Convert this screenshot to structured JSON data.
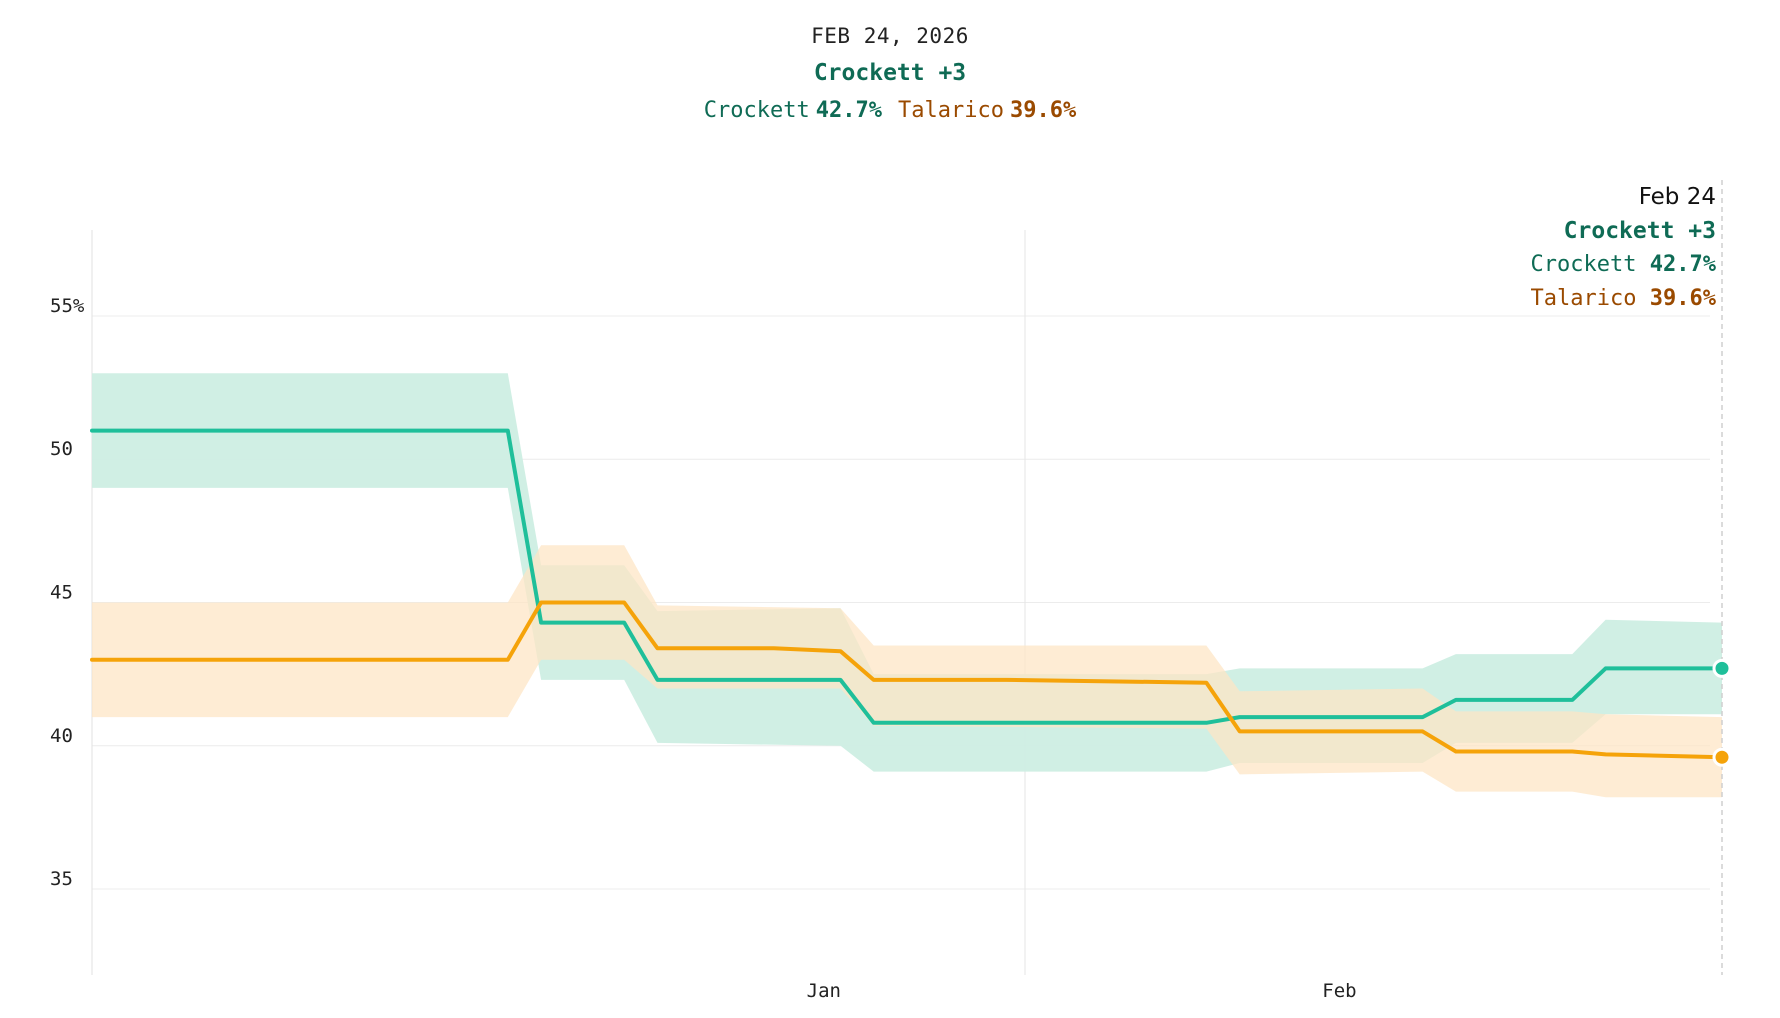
{
  "header": {
    "date": "FEB 24, 2026",
    "lead": "Crockett +3",
    "crockett_label": "Crockett",
    "crockett_value": "42.7%",
    "talarico_label": "Talarico",
    "talarico_value": "39.6%"
  },
  "hover": {
    "date": "Feb 24",
    "lead": "Crockett +3",
    "crockett_label": "Crockett",
    "crockett_value": "42.7%",
    "talarico_label": "Talarico",
    "talarico_value": "39.6%"
  },
  "colors": {
    "crockett": "#1fbf9a",
    "talarico": "#f5a30a",
    "crockett_band": "#cdeee3",
    "talarico_band": "#fde6c6",
    "overlap_band": "#ddd9b4"
  },
  "chart_data": {
    "type": "line",
    "x_labels": [
      "Jan",
      "Feb"
    ],
    "y_ticks": [
      "55%",
      "50",
      "45",
      "40",
      "35"
    ],
    "ylim": [
      32,
      58
    ],
    "series": [
      {
        "name": "Crockett",
        "points": [
          [
            "2025-11-18",
            51.0
          ],
          [
            "2025-12-13",
            51.0
          ],
          [
            "2025-12-15",
            44.3
          ],
          [
            "2025-12-20",
            44.3
          ],
          [
            "2025-12-22",
            42.3
          ],
          [
            "2025-12-29",
            42.3
          ],
          [
            "2026-01-02",
            42.3
          ],
          [
            "2026-01-04",
            40.8
          ],
          [
            "2026-01-12",
            40.8
          ],
          [
            "2026-01-24",
            40.8
          ],
          [
            "2026-01-26",
            41.0
          ],
          [
            "2026-02-06",
            41.0
          ],
          [
            "2026-02-08",
            41.6
          ],
          [
            "2026-02-15",
            41.6
          ],
          [
            "2026-02-17",
            42.7
          ],
          [
            "2026-02-24",
            42.7
          ]
        ],
        "band_upper": [
          [
            "2025-11-18",
            53.0
          ],
          [
            "2025-12-13",
            53.0
          ],
          [
            "2025-12-15",
            46.3
          ],
          [
            "2025-12-20",
            46.3
          ],
          [
            "2025-12-22",
            44.7
          ],
          [
            "2026-01-02",
            44.8
          ],
          [
            "2026-01-04",
            42.5
          ],
          [
            "2026-01-24",
            42.5
          ],
          [
            "2026-01-26",
            42.7
          ],
          [
            "2026-02-06",
            42.7
          ],
          [
            "2026-02-08",
            43.2
          ],
          [
            "2026-02-15",
            43.2
          ],
          [
            "2026-02-17",
            44.4
          ],
          [
            "2026-02-24",
            44.3
          ]
        ],
        "band_lower": [
          [
            "2025-11-18",
            49.0
          ],
          [
            "2025-12-13",
            49.0
          ],
          [
            "2025-12-15",
            42.3
          ],
          [
            "2025-12-20",
            42.3
          ],
          [
            "2025-12-22",
            40.1
          ],
          [
            "2026-01-02",
            40.0
          ],
          [
            "2026-01-04",
            39.1
          ],
          [
            "2026-01-24",
            39.1
          ],
          [
            "2026-01-26",
            39.4
          ],
          [
            "2026-02-06",
            39.4
          ],
          [
            "2026-02-08",
            40.1
          ],
          [
            "2026-02-15",
            40.1
          ],
          [
            "2026-02-17",
            41.1
          ],
          [
            "2026-02-24",
            41.1
          ]
        ]
      },
      {
        "name": "Talarico",
        "points": [
          [
            "2025-11-18",
            43.0
          ],
          [
            "2025-12-13",
            43.0
          ],
          [
            "2025-12-15",
            45.0
          ],
          [
            "2025-12-20",
            45.0
          ],
          [
            "2025-12-22",
            43.4
          ],
          [
            "2025-12-29",
            43.4
          ],
          [
            "2026-01-02",
            43.3
          ],
          [
            "2026-01-04",
            42.3
          ],
          [
            "2026-01-12",
            42.3
          ],
          [
            "2026-01-24",
            42.2
          ],
          [
            "2026-01-26",
            40.5
          ],
          [
            "2026-02-06",
            40.5
          ],
          [
            "2026-02-08",
            39.8
          ],
          [
            "2026-02-15",
            39.8
          ],
          [
            "2026-02-17",
            39.7
          ],
          [
            "2026-02-24",
            39.6
          ]
        ],
        "band_upper": [
          [
            "2025-11-18",
            45.0
          ],
          [
            "2025-12-13",
            45.0
          ],
          [
            "2025-12-15",
            47.0
          ],
          [
            "2025-12-20",
            47.0
          ],
          [
            "2025-12-22",
            44.9
          ],
          [
            "2026-01-02",
            44.8
          ],
          [
            "2026-01-04",
            43.5
          ],
          [
            "2026-01-24",
            43.5
          ],
          [
            "2026-01-26",
            41.9
          ],
          [
            "2026-02-06",
            42.0
          ],
          [
            "2026-02-08",
            41.2
          ],
          [
            "2026-02-15",
            41.2
          ],
          [
            "2026-02-17",
            41.1
          ],
          [
            "2026-02-24",
            41.0
          ]
        ],
        "band_lower": [
          [
            "2025-11-18",
            41.0
          ],
          [
            "2025-12-13",
            41.0
          ],
          [
            "2025-12-15",
            43.0
          ],
          [
            "2025-12-20",
            43.0
          ],
          [
            "2025-12-22",
            42.0
          ],
          [
            "2026-01-02",
            42.0
          ],
          [
            "2026-01-04",
            40.7
          ],
          [
            "2026-01-24",
            40.6
          ],
          [
            "2026-01-26",
            39.0
          ],
          [
            "2026-02-06",
            39.1
          ],
          [
            "2026-02-08",
            38.4
          ],
          [
            "2026-02-15",
            38.4
          ],
          [
            "2026-02-17",
            38.2
          ],
          [
            "2026-02-24",
            38.2
          ]
        ]
      }
    ],
    "grid": true,
    "legend": "none"
  }
}
